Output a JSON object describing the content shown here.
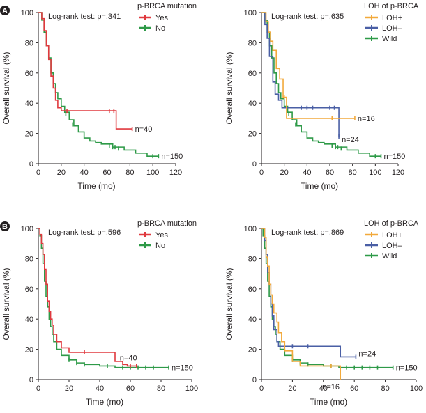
{
  "colors": {
    "red": "#e0393e",
    "green": "#2e9a48",
    "orange": "#f2a93b",
    "blue": "#4a5fa5",
    "axis": "#231f20"
  },
  "rows": [
    {
      "badge": "A"
    },
    {
      "badge": "B"
    }
  ],
  "chart_data": [
    {
      "type": "line",
      "title": "",
      "xlabel": "Time (mo)",
      "ylabel": "Overall survival (%)",
      "xlim": [
        0,
        120
      ],
      "ylim": [
        0,
        100
      ],
      "xticks": [
        0,
        20,
        40,
        60,
        80,
        100,
        120
      ],
      "yticks": [
        0,
        20,
        40,
        60,
        80,
        100
      ],
      "annotation": "Log-rank test: p=.341",
      "legend_title": "p-BRCA mutation",
      "series": [
        {
          "name": "Yes",
          "color_key": "red",
          "n_label": "n=40",
          "points": [
            [
              0,
              100
            ],
            [
              3,
              96
            ],
            [
              5,
              88
            ],
            [
              7,
              78
            ],
            [
              9,
              69
            ],
            [
              11,
              58
            ],
            [
              13,
              50
            ],
            [
              15,
              42
            ],
            [
              17,
              37
            ],
            [
              20,
              35
            ],
            [
              65,
              35
            ],
            [
              68,
              23
            ],
            [
              82,
              23
            ]
          ],
          "censor": [
            [
              25,
              35
            ],
            [
              62,
              35
            ],
            [
              66,
              35
            ],
            [
              82,
              23
            ]
          ]
        },
        {
          "name": "No",
          "color_key": "green",
          "n_label": "n=150",
          "points": [
            [
              0,
              100
            ],
            [
              3,
              95
            ],
            [
              5,
              87
            ],
            [
              7,
              78
            ],
            [
              9,
              70
            ],
            [
              11,
              60
            ],
            [
              13,
              53
            ],
            [
              15,
              47
            ],
            [
              17,
              43
            ],
            [
              20,
              38
            ],
            [
              23,
              34
            ],
            [
              27,
              29
            ],
            [
              31,
              25
            ],
            [
              35,
              21
            ],
            [
              40,
              17
            ],
            [
              45,
              15
            ],
            [
              50,
              14
            ],
            [
              55,
              13
            ],
            [
              65,
              11
            ],
            [
              75,
              9
            ],
            [
              85,
              7
            ],
            [
              95,
              5
            ],
            [
              105,
              5
            ]
          ],
          "censor": [
            [
              24,
              33
            ],
            [
              30,
              26
            ],
            [
              62,
              12
            ],
            [
              65,
              11
            ],
            [
              67,
              11
            ],
            [
              70,
              10
            ],
            [
              100,
              5
            ],
            [
              105,
              5
            ]
          ]
        }
      ]
    },
    {
      "type": "line",
      "title": "",
      "xlabel": "Time (mo)",
      "ylabel": "Overall survival (%)",
      "xlim": [
        0,
        120
      ],
      "ylim": [
        0,
        100
      ],
      "xticks": [
        0,
        20,
        40,
        60,
        80,
        100,
        120
      ],
      "yticks": [
        0,
        20,
        40,
        60,
        80,
        100
      ],
      "annotation": "Log-rank test: p=.635",
      "legend_title": "LOH of p-BRCA",
      "series": [
        {
          "name": "LOH+",
          "color_key": "orange",
          "n_label": "n=16",
          "points": [
            [
              0,
              100
            ],
            [
              4,
              94
            ],
            [
              6,
              87
            ],
            [
              8,
              81
            ],
            [
              10,
              75
            ],
            [
              13,
              63
            ],
            [
              16,
              56
            ],
            [
              19,
              44
            ],
            [
              22,
              30
            ],
            [
              82,
              30
            ]
          ],
          "censor": [
            [
              20,
              44
            ],
            [
              62,
              30
            ],
            [
              82,
              30
            ]
          ]
        },
        {
          "name": "LOH–",
          "color_key": "blue",
          "n_label": "n=24",
          "points": [
            [
              0,
              100
            ],
            [
              3,
              92
            ],
            [
              5,
              83
            ],
            [
              7,
              71
            ],
            [
              10,
              54
            ],
            [
              12,
              46
            ],
            [
              15,
              42
            ],
            [
              18,
              37
            ],
            [
              66,
              37
            ],
            [
              68,
              18
            ]
          ],
          "censor": [
            [
              35,
              37
            ],
            [
              40,
              37
            ],
            [
              45,
              37
            ],
            [
              60,
              37
            ],
            [
              64,
              37
            ],
            [
              68,
              18
            ]
          ]
        },
        {
          "name": "Wild",
          "color_key": "green",
          "n_label": "n=150",
          "points": [
            [
              0,
              100
            ],
            [
              3,
              95
            ],
            [
              5,
              87
            ],
            [
              7,
              78
            ],
            [
              9,
              70
            ],
            [
              11,
              60
            ],
            [
              13,
              53
            ],
            [
              15,
              47
            ],
            [
              17,
              43
            ],
            [
              20,
              38
            ],
            [
              23,
              34
            ],
            [
              27,
              29
            ],
            [
              31,
              25
            ],
            [
              35,
              21
            ],
            [
              40,
              17
            ],
            [
              45,
              15
            ],
            [
              50,
              14
            ],
            [
              55,
              13
            ],
            [
              65,
              11
            ],
            [
              75,
              9
            ],
            [
              85,
              7
            ],
            [
              95,
              5
            ],
            [
              105,
              5
            ]
          ],
          "censor": [
            [
              24,
              33
            ],
            [
              30,
              26
            ],
            [
              62,
              12
            ],
            [
              65,
              11
            ],
            [
              67,
              11
            ],
            [
              70,
              10
            ],
            [
              100,
              5
            ],
            [
              105,
              5
            ]
          ]
        }
      ]
    },
    {
      "type": "line",
      "title": "",
      "xlabel": "Time (mo)",
      "ylabel": "Overall survival (%)",
      "xlim": [
        0,
        100
      ],
      "ylim": [
        0,
        100
      ],
      "xticks": [
        0,
        20,
        40,
        60,
        80,
        100
      ],
      "yticks": [
        0,
        20,
        40,
        60,
        80,
        100
      ],
      "annotation": "Log-rank test: p=.596",
      "legend_title": "p-BRCA mutation",
      "series": [
        {
          "name": "Yes",
          "color_key": "red",
          "n_label": "n=40",
          "points": [
            [
              0,
              100
            ],
            [
              1,
              96
            ],
            [
              2,
              90
            ],
            [
              3,
              83
            ],
            [
              4,
              73
            ],
            [
              5,
              63
            ],
            [
              6,
              52
            ],
            [
              7,
              45
            ],
            [
              8,
              40
            ],
            [
              9,
              36
            ],
            [
              10,
              30
            ],
            [
              12,
              25
            ],
            [
              15,
              21
            ],
            [
              20,
              18
            ],
            [
              48,
              18
            ],
            [
              50,
              12
            ],
            [
              55,
              10
            ],
            [
              58,
              9
            ],
            [
              64,
              9
            ]
          ],
          "censor": [
            [
              30,
              18
            ],
            [
              60,
              9
            ],
            [
              64,
              9
            ]
          ]
        },
        {
          "name": "No",
          "color_key": "green",
          "n_label": "n=150",
          "points": [
            [
              0,
              100
            ],
            [
              1,
              95
            ],
            [
              2,
              87
            ],
            [
              3,
              77
            ],
            [
              4,
              65
            ],
            [
              5,
              55
            ],
            [
              6,
              48
            ],
            [
              7,
              40
            ],
            [
              8,
              35
            ],
            [
              9,
              30
            ],
            [
              10,
              25
            ],
            [
              12,
              20
            ],
            [
              15,
              16
            ],
            [
              20,
              13
            ],
            [
              25,
              11
            ],
            [
              30,
              10
            ],
            [
              40,
              9
            ],
            [
              50,
              8
            ],
            [
              85,
              8
            ]
          ],
          "censor": [
            [
              20,
              13
            ],
            [
              25,
              11
            ],
            [
              30,
              10
            ],
            [
              45,
              9
            ],
            [
              55,
              8
            ],
            [
              60,
              8
            ],
            [
              65,
              8
            ],
            [
              70,
              8
            ],
            [
              75,
              8
            ],
            [
              85,
              8
            ]
          ]
        }
      ]
    },
    {
      "type": "line",
      "title": "",
      "xlabel": "Time (mo)",
      "ylabel": "Overall survival (%)",
      "xlim": [
        0,
        100
      ],
      "ylim": [
        0,
        100
      ],
      "xticks": [
        0,
        20,
        40,
        60,
        80,
        100
      ],
      "yticks": [
        0,
        20,
        40,
        60,
        80,
        100
      ],
      "annotation": "Log-rank test: p=.869",
      "legend_title": "LOH of p-BRCA",
      "series": [
        {
          "name": "LOH+",
          "color_key": "orange",
          "n_label": "n=16",
          "points": [
            [
              0,
              100
            ],
            [
              2,
              94
            ],
            [
              3,
              81
            ],
            [
              4,
              75
            ],
            [
              5,
              63
            ],
            [
              6,
              56
            ],
            [
              7,
              50
            ],
            [
              8,
              44
            ],
            [
              10,
              38
            ],
            [
              11,
              31
            ],
            [
              13,
              25
            ],
            [
              15,
              19
            ],
            [
              20,
              12
            ],
            [
              25,
              9
            ],
            [
              50,
              9
            ],
            [
              51,
              0
            ]
          ],
          "censor": [
            [
              45,
              9
            ]
          ]
        },
        {
          "name": "LOH–",
          "color_key": "blue",
          "n_label": "n=24",
          "points": [
            [
              0,
              100
            ],
            [
              2,
              92
            ],
            [
              3,
              83
            ],
            [
              4,
              71
            ],
            [
              5,
              63
            ],
            [
              6,
              50
            ],
            [
              7,
              42
            ],
            [
              8,
              33
            ],
            [
              10,
              25
            ],
            [
              11,
              22
            ],
            [
              50,
              22
            ],
            [
              51,
              15
            ],
            [
              61,
              15
            ]
          ],
          "censor": [
            [
              20,
              22
            ],
            [
              30,
              22
            ],
            [
              61,
              15
            ]
          ]
        },
        {
          "name": "Wild",
          "color_key": "green",
          "n_label": "n=150",
          "points": [
            [
              0,
              100
            ],
            [
              1,
              95
            ],
            [
              2,
              87
            ],
            [
              3,
              77
            ],
            [
              4,
              65
            ],
            [
              5,
              55
            ],
            [
              6,
              48
            ],
            [
              7,
              40
            ],
            [
              8,
              35
            ],
            [
              9,
              30
            ],
            [
              10,
              25
            ],
            [
              12,
              20
            ],
            [
              15,
              16
            ],
            [
              20,
              13
            ],
            [
              25,
              11
            ],
            [
              30,
              10
            ],
            [
              40,
              9
            ],
            [
              50,
              8
            ],
            [
              85,
              8
            ]
          ],
          "censor": [
            [
              20,
              13
            ],
            [
              25,
              11
            ],
            [
              30,
              10
            ],
            [
              45,
              9
            ],
            [
              55,
              8
            ],
            [
              60,
              8
            ],
            [
              65,
              8
            ],
            [
              70,
              8
            ],
            [
              75,
              8
            ],
            [
              85,
              8
            ]
          ]
        }
      ]
    }
  ]
}
